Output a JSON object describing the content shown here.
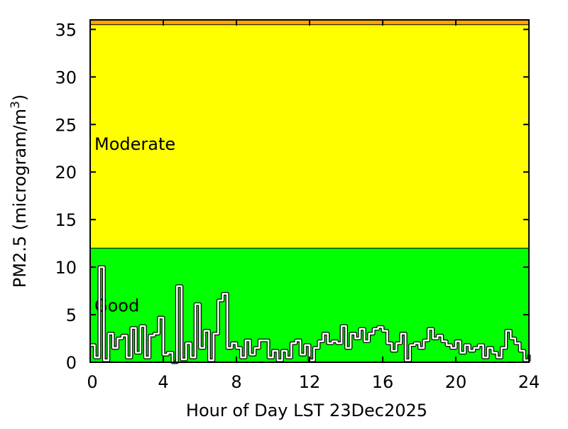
{
  "chart_data": {
    "type": "line",
    "title": "",
    "xlabel": "Hour of Day LST 23Dec2025",
    "ylabel": "PM2.5 (microgram/m",
    "ylabel_sup": "3",
    "ylabel_close": ")",
    "xlim": [
      0,
      24
    ],
    "ylim": [
      0,
      36
    ],
    "xticks": [
      0,
      4,
      8,
      12,
      16,
      20,
      24
    ],
    "yticks": [
      0,
      5,
      10,
      15,
      20,
      25,
      30,
      35
    ],
    "grid": false,
    "bands": [
      {
        "name": "Good",
        "from": 0,
        "to": 12,
        "color": "#00ff00"
      },
      {
        "name": "Moderate",
        "from": 12,
        "to": 35.5,
        "color": "#ffff00"
      },
      {
        "name": "",
        "from": 35.5,
        "to": 36,
        "color": "#ffa500"
      }
    ],
    "band_labels": [
      {
        "text": "Moderate",
        "y": 23
      },
      {
        "text": "Good",
        "y": 6
      }
    ],
    "series": [
      {
        "name": "PM2.5",
        "color": "#ffffff",
        "x": [
          0,
          0.25,
          0.5,
          0.75,
          1,
          1.25,
          1.5,
          1.75,
          2,
          2.25,
          2.5,
          2.75,
          3,
          3.25,
          3.5,
          3.75,
          4,
          4.25,
          4.5,
          4.75,
          5,
          5.25,
          5.5,
          5.75,
          6,
          6.25,
          6.5,
          6.75,
          7,
          7.25,
          7.5,
          7.75,
          8,
          8.25,
          8.5,
          8.75,
          9,
          9.25,
          9.5,
          9.75,
          10,
          10.25,
          10.5,
          10.75,
          11,
          11.25,
          11.5,
          11.75,
          12,
          12.25,
          12.5,
          12.75,
          13,
          13.25,
          13.5,
          13.75,
          14,
          14.25,
          14.5,
          14.75,
          15,
          15.25,
          15.5,
          15.75,
          16,
          16.25,
          16.5,
          16.75,
          17,
          17.25,
          17.5,
          17.75,
          18,
          18.25,
          18.5,
          18.75,
          19,
          19.25,
          19.5,
          19.75,
          20,
          20.25,
          20.5,
          20.75,
          21,
          21.25,
          21.5,
          21.75,
          22,
          22.25,
          22.5,
          22.75,
          23,
          23.25,
          23.5,
          23.75,
          24
        ],
        "values": [
          1.8,
          0.5,
          10,
          0.2,
          3,
          1.5,
          2.5,
          2.8,
          0.5,
          3.6,
          1,
          3.8,
          0.5,
          2.8,
          3,
          4.7,
          0.8,
          1,
          0,
          8,
          0.3,
          2,
          0.5,
          6.1,
          1.5,
          3.3,
          0.2,
          3,
          6.5,
          7.2,
          1.5,
          2,
          1.5,
          0.5,
          2.3,
          0.8,
          1.5,
          2.3,
          2.3,
          0.5,
          1.2,
          0.2,
          1.2,
          0.5,
          2,
          2.3,
          0.8,
          1.8,
          0.2,
          1.5,
          2.2,
          3,
          2,
          2.2,
          2,
          3.8,
          1.5,
          3,
          2.5,
          3.5,
          2.2,
          3,
          3.5,
          3.7,
          3.3,
          2,
          1.2,
          2,
          3,
          0.2,
          1.8,
          2,
          1.5,
          2.3,
          3.5,
          2.5,
          2.8,
          2.2,
          1.8,
          1.5,
          2.2,
          1,
          1.8,
          1.2,
          1.5,
          1.8,
          0.5,
          1.5,
          1,
          0.5,
          1.5,
          3.3,
          2.5,
          2,
          1.2,
          0.2,
          0.8
        ]
      }
    ]
  }
}
